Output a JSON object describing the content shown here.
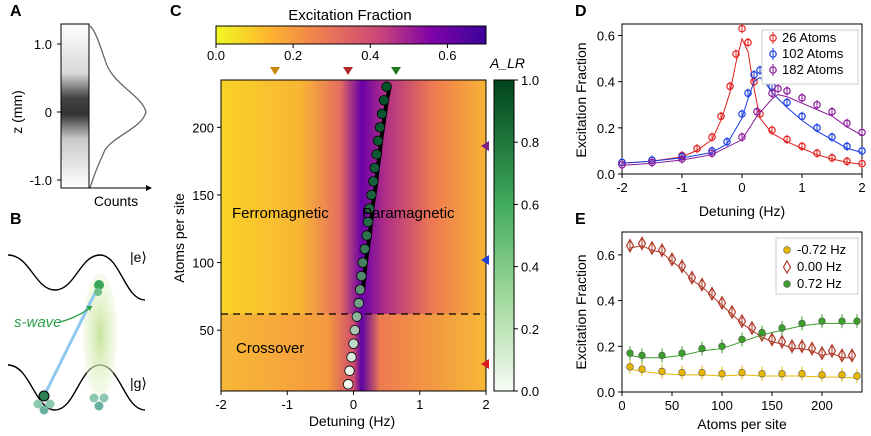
{
  "panels": {
    "A": "A",
    "B": "B",
    "C": "C",
    "D": "D",
    "E": "E"
  },
  "panel_a": {
    "yticks": [
      "1.0",
      "0",
      "-1.0"
    ],
    "ylabel": "z (mm)",
    "xlabel": "Counts"
  },
  "panel_b": {
    "upper_state": "|e⟩",
    "lower_state": "|g⟩",
    "swave_label": "s-wave"
  },
  "panel_c": {
    "colorbar_top_title": "Excitation Fraction",
    "colorbar_top_ticks": [
      "0.0",
      "0.2",
      "0.4",
      "0.6"
    ],
    "colorbar_right_title": "A_LR",
    "colorbar_right_ticks": [
      "1.0",
      "0.8",
      "0.6",
      "0.4",
      "0.2",
      "0.0"
    ],
    "xlabel": "Detuning (Hz)",
    "ylabel": "Atoms per site",
    "xticks": [
      "-2",
      "-1",
      "0",
      "1",
      "2"
    ],
    "yticks": [
      "200",
      "150",
      "100",
      "50"
    ],
    "region_ferro": "Ferromagnetic",
    "region_para": "Paramagnetic",
    "region_cross": "Crossover",
    "marker_colors_top": [
      "#c8860a",
      "#b02a2a",
      "#1f7a1f"
    ],
    "marker_colors_right": [
      "#7a1f8a",
      "#1c3fd6",
      "#d61c1c"
    ]
  },
  "chart_data": [
    {
      "type": "line",
      "panel": "D",
      "xlabel": "Detuning (Hz)",
      "ylabel": "Excitation Fraction",
      "xlim": [
        -2,
        2
      ],
      "ylim": [
        0,
        0.65
      ],
      "xticks": [
        "-2",
        "-1",
        "0",
        "1",
        "2"
      ],
      "yticks": [
        "0.0",
        "0.2",
        "0.4",
        "0.6"
      ],
      "legend_position": "top-right",
      "series": [
        {
          "name": "26 Atoms",
          "color": "#e02020",
          "x": [
            -2,
            -1.5,
            -1,
            -0.75,
            -0.5,
            -0.35,
            -0.2,
            -0.1,
            0,
            0.1,
            0.2,
            0.3,
            0.5,
            0.75,
            1,
            1.25,
            1.5,
            1.75,
            2
          ],
          "y": [
            0.05,
            0.06,
            0.08,
            0.11,
            0.16,
            0.25,
            0.38,
            0.52,
            0.63,
            0.57,
            0.4,
            0.26,
            0.19,
            0.15,
            0.12,
            0.09,
            0.07,
            0.055,
            0.045
          ]
        },
        {
          "name": "102 Atoms",
          "color": "#1a3ee0",
          "x": [
            -2,
            -1.5,
            -1,
            -0.5,
            -0.25,
            0,
            0.1,
            0.2,
            0.3,
            0.4,
            0.5,
            0.75,
            1,
            1.25,
            1.5,
            1.75,
            2
          ],
          "y": [
            0.05,
            0.06,
            0.075,
            0.1,
            0.14,
            0.26,
            0.35,
            0.43,
            0.45,
            0.42,
            0.38,
            0.31,
            0.25,
            0.2,
            0.16,
            0.12,
            0.1
          ]
        },
        {
          "name": "182 Atoms",
          "color": "#8a1a9a",
          "x": [
            -2,
            -1.5,
            -1,
            -0.5,
            0,
            0.25,
            0.5,
            0.6,
            0.75,
            1,
            1.25,
            1.5,
            1.75,
            2
          ],
          "y": [
            0.04,
            0.05,
            0.065,
            0.09,
            0.16,
            0.27,
            0.35,
            0.37,
            0.36,
            0.33,
            0.3,
            0.27,
            0.22,
            0.18
          ]
        }
      ]
    },
    {
      "type": "scatter",
      "panel": "E",
      "xlabel": "Atoms per site",
      "ylabel": "Excitation Fraction",
      "xlim": [
        0,
        240
      ],
      "ylim": [
        0,
        0.7
      ],
      "xticks": [
        "0",
        "50",
        "100",
        "150",
        "200"
      ],
      "yticks": [
        "0.0",
        "0.2",
        "0.4",
        "0.6"
      ],
      "legend_position": "top-right",
      "series": [
        {
          "name": "-0.72 Hz",
          "color": "#e8b800",
          "marker": "circle",
          "x": [
            8,
            20,
            40,
            60,
            80,
            100,
            120,
            140,
            160,
            180,
            200,
            220,
            235
          ],
          "y": [
            0.11,
            0.1,
            0.09,
            0.085,
            0.085,
            0.08,
            0.085,
            0.08,
            0.08,
            0.08,
            0.075,
            0.075,
            0.07
          ]
        },
        {
          "name": "0.00 Hz",
          "color": "#b03a2a",
          "marker": "diamond",
          "x": [
            8,
            20,
            30,
            40,
            50,
            60,
            70,
            80,
            90,
            100,
            110,
            120,
            130,
            140,
            150,
            160,
            170,
            180,
            190,
            200,
            210,
            220,
            230
          ],
          "y": [
            0.64,
            0.65,
            0.63,
            0.62,
            0.58,
            0.55,
            0.5,
            0.47,
            0.43,
            0.39,
            0.35,
            0.31,
            0.28,
            0.25,
            0.23,
            0.22,
            0.2,
            0.2,
            0.19,
            0.17,
            0.18,
            0.16,
            0.16
          ]
        },
        {
          "name": "0.72 Hz",
          "color": "#3aa02a",
          "marker": "circle",
          "x": [
            8,
            20,
            40,
            60,
            80,
            100,
            120,
            140,
            160,
            180,
            200,
            220,
            235
          ],
          "y": [
            0.17,
            0.16,
            0.16,
            0.17,
            0.19,
            0.2,
            0.23,
            0.26,
            0.28,
            0.3,
            0.31,
            0.31,
            0.31
          ]
        }
      ]
    },
    {
      "type": "heatmap",
      "panel": "C",
      "xlabel": "Detuning (Hz)",
      "ylabel": "Atoms per site",
      "xlim": [
        -2,
        2
      ],
      "ylim": [
        5,
        235
      ],
      "color_range": [
        0,
        0.7
      ],
      "transition_points": {
        "atoms": [
          10,
          20,
          30,
          40,
          50,
          60,
          70,
          80,
          90,
          100,
          110,
          120,
          130,
          140,
          150,
          160,
          170,
          180,
          190,
          200,
          210,
          220,
          230
        ],
        "detuning": [
          -0.08,
          -0.06,
          -0.03,
          0.0,
          0.02,
          0.05,
          0.08,
          0.1,
          0.12,
          0.14,
          0.17,
          0.2,
          0.22,
          0.24,
          0.27,
          0.3,
          0.32,
          0.35,
          0.37,
          0.4,
          0.43,
          0.46,
          0.5
        ],
        "A_LR": [
          0.0,
          0.05,
          0.12,
          0.2,
          0.3,
          0.42,
          0.52,
          0.6,
          0.66,
          0.72,
          0.77,
          0.81,
          0.84,
          0.87,
          0.89,
          0.91,
          0.93,
          0.94,
          0.95,
          0.96,
          0.97,
          0.98,
          0.99
        ]
      },
      "crossover_atoms": 63
    }
  ]
}
